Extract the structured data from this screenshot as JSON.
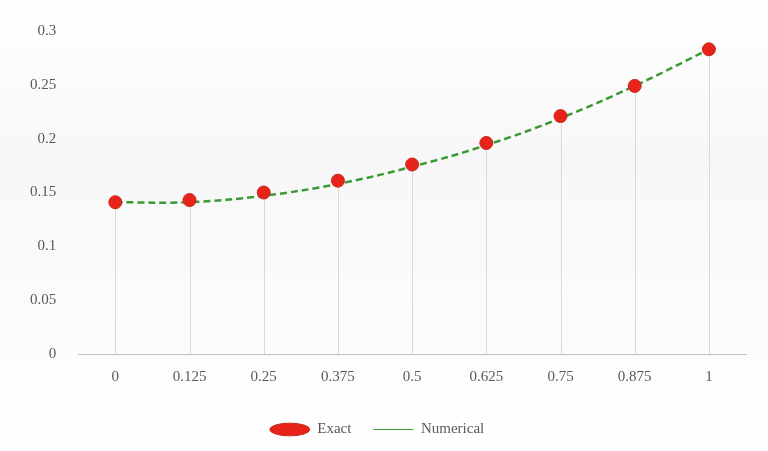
{
  "chart_data": {
    "type": "line",
    "categories": [
      "0",
      "0.125",
      "0.25",
      "0.375",
      "0.5",
      "0.625",
      "0.75",
      "0.875",
      "1"
    ],
    "series": [
      {
        "name": "Numerical",
        "color": "#3c9a34",
        "line_style": "dashed",
        "marker": "none",
        "values": [
          0.141,
          0.141,
          0.147,
          0.158,
          0.174,
          0.194,
          0.219,
          0.249,
          0.283
        ]
      },
      {
        "name": "Exact",
        "color": "#e8231a",
        "line_style": "none",
        "marker": "circle",
        "values": [
          0.141,
          0.143,
          0.15,
          0.161,
          0.176,
          0.196,
          0.221,
          0.249,
          0.283
        ]
      }
    ],
    "ylim": [
      0,
      0.3
    ],
    "yticks": [
      0,
      0.05,
      0.1,
      0.15,
      0.2,
      0.25,
      0.3
    ],
    "grid": false,
    "legend": "bottom"
  }
}
